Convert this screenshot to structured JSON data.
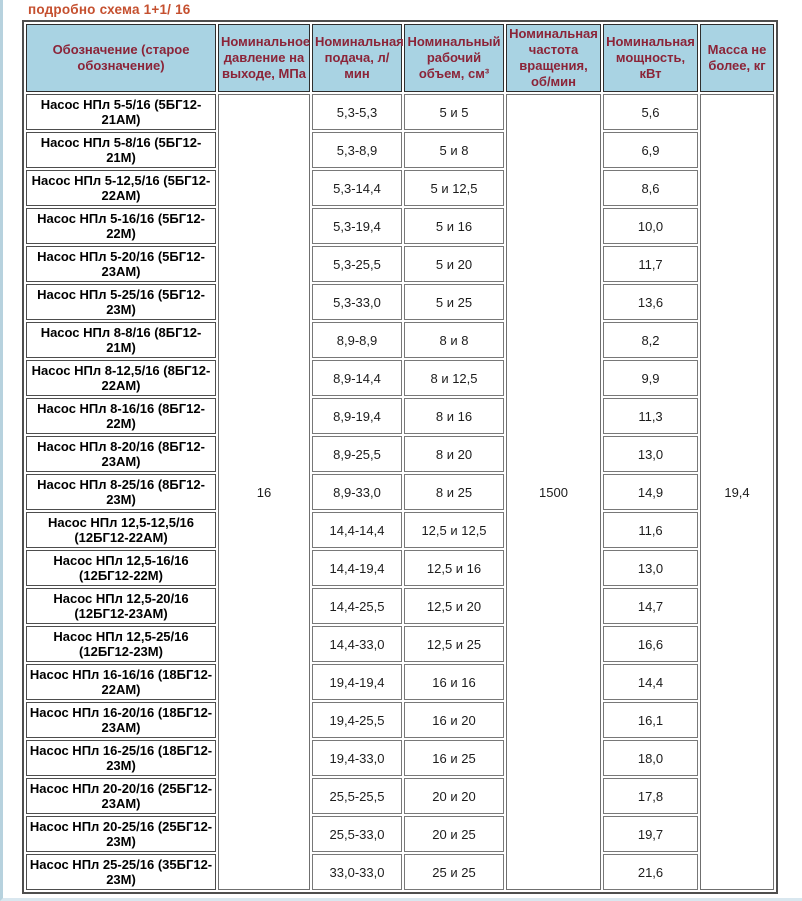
{
  "page": {
    "title": "подробно схема 1+1/ 16"
  },
  "colors": {
    "title_accent": "#c5502f",
    "header_background": "#a9d3e3",
    "header_text": "#8b2438",
    "frame_line": "#b7d2de"
  },
  "table": {
    "columns": [
      "Обозначение (старое обозначение)",
      "Номинальное давление на выходе, МПа",
      "Номинальная подача, л/ мин",
      "Номинальный рабочий объем, см³",
      "Номинальная частота вращения, об/мин",
      "Номинальная мощность, кВт",
      "Масса не более, кг"
    ],
    "merged": {
      "pressure": "16",
      "speed": "1500",
      "mass": "19,4"
    },
    "rows": [
      {
        "name": "Насос НПл 5-5/16 (5БГ12-21АМ)",
        "flow": "5,3-5,3",
        "volume": "5 и 5",
        "power": "5,6"
      },
      {
        "name": "Насос НПл 5-8/16 (5БГ12-21М)",
        "flow": "5,3-8,9",
        "volume": "5 и 8",
        "power": "6,9"
      },
      {
        "name": "Насос НПл 5-12,5/16 (5БГ12-22АМ)",
        "flow": "5,3-14,4",
        "volume": "5 и 12,5",
        "power": "8,6"
      },
      {
        "name": "Насос НПл 5-16/16 (5БГ12-22М)",
        "flow": "5,3-19,4",
        "volume": "5 и 16",
        "power": "10,0"
      },
      {
        "name": "Насос НПл 5-20/16 (5БГ12-23АМ)",
        "flow": "5,3-25,5",
        "volume": "5 и 20",
        "power": "11,7"
      },
      {
        "name": "Насос НПл 5-25/16 (5БГ12-23М)",
        "flow": "5,3-33,0",
        "volume": "5 и 25",
        "power": "13,6"
      },
      {
        "name": "Насос НПл 8-8/16 (8БГ12-21М)",
        "flow": "8,9-8,9",
        "volume": "8 и 8",
        "power": "8,2"
      },
      {
        "name": "Насос НПл 8-12,5/16 (8БГ12-22АМ)",
        "flow": "8,9-14,4",
        "volume": "8 и 12,5",
        "power": "9,9"
      },
      {
        "name": "Насос НПл 8-16/16 (8БГ12-22М)",
        "flow": "8,9-19,4",
        "volume": "8 и 16",
        "power": "11,3"
      },
      {
        "name": "Насос НПл 8-20/16 (8БГ12-23АМ)",
        "flow": "8,9-25,5",
        "volume": "8 и 20",
        "power": "13,0"
      },
      {
        "name": "Насос НПл 8-25/16 (8БГ12-23М)",
        "flow": "8,9-33,0",
        "volume": "8 и 25",
        "power": "14,9"
      },
      {
        "name": "Насос НПл 12,5-12,5/16 (12БГ12-22АМ)",
        "flow": "14,4-14,4",
        "volume": "12,5 и 12,5",
        "power": "11,6"
      },
      {
        "name": "Насос НПл 12,5-16/16 (12БГ12-22М)",
        "flow": "14,4-19,4",
        "volume": "12,5 и 16",
        "power": "13,0"
      },
      {
        "name": "Насос НПл 12,5-20/16 (12БГ12-23АМ)",
        "flow": "14,4-25,5",
        "volume": "12,5 и 20",
        "power": "14,7"
      },
      {
        "name": "Насос НПл 12,5-25/16 (12БГ12-23М)",
        "flow": "14,4-33,0",
        "volume": "12,5 и 25",
        "power": "16,6"
      },
      {
        "name": "Насос НПл 16-16/16 (18БГ12-22АМ)",
        "flow": "19,4-19,4",
        "volume": "16 и 16",
        "power": "14,4"
      },
      {
        "name": "Насос НПл 16-20/16 (18БГ12-23АМ)",
        "flow": "19,4-25,5",
        "volume": "16 и 20",
        "power": "16,1"
      },
      {
        "name": "Насос НПл 16-25/16 (18БГ12-23М)",
        "flow": "19,4-33,0",
        "volume": "16 и 25",
        "power": "18,0"
      },
      {
        "name": "Насос НПл 20-20/16 (25БГ12-23АМ)",
        "flow": "25,5-25,5",
        "volume": "20 и 20",
        "power": "17,8"
      },
      {
        "name": "Насос НПл 20-25/16 (25БГ12-23М)",
        "flow": "25,5-33,0",
        "volume": "20 и 25",
        "power": "19,7"
      },
      {
        "name": "Насос НПл 25-25/16 (35БГ12-23М)",
        "flow": "33,0-33,0",
        "volume": "25 и 25",
        "power": "21,6"
      }
    ]
  }
}
